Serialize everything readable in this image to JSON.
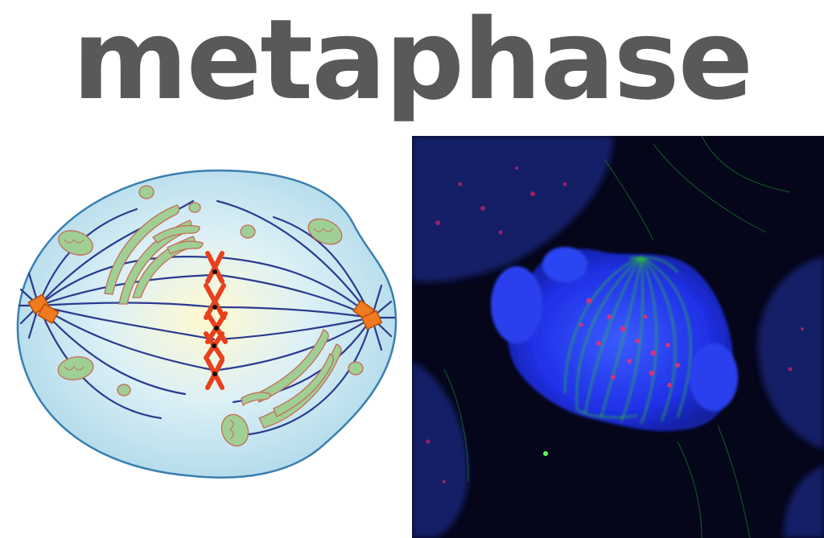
{
  "title": "metaphase",
  "colors": {
    "title": "#595959",
    "cell_fill": "#d6ecf4",
    "cell_stroke": "#3a7fb0",
    "spindle": "#2a3a8f",
    "chromosome": "#e8401c",
    "organelle": "#9fcf95",
    "centrosome": "#f07a1e",
    "micro_background": "#05061a",
    "micro_dna": "#1a2de0",
    "micro_tubulin": "#2fbf3a",
    "micro_kinetochore": "#e0307a"
  }
}
